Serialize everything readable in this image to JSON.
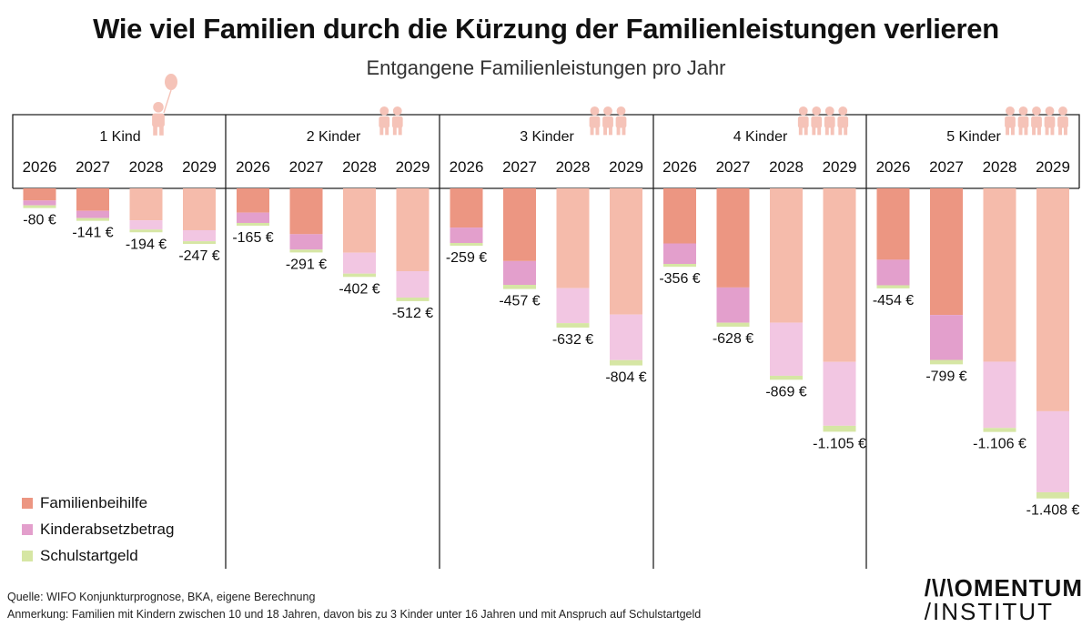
{
  "header": {
    "title": "Wie viel Familien durch die Kürzung der Familienleistungen verlieren",
    "subtitle": "Entgangene Familienleistungen pro Jahr"
  },
  "colors": {
    "familienbeihilfe_full": "#ec9682",
    "kinderabsetzbetrag_full": "#e39fcc",
    "familienbeihilfe_light": "#f5bbab",
    "kinderabsetzbetrag_light": "#f2c6e2",
    "schulstartgeld": "#d6e6a4",
    "icon": "#f5c3b8",
    "frame": "#222222"
  },
  "legend": [
    {
      "label": "Familienbeihilfe",
      "color": "#ec9682"
    },
    {
      "label": "Kinderabsetzbetrag",
      "color": "#e39fcc"
    },
    {
      "label": "Schulstartgeld",
      "color": "#d6e6a4"
    }
  ],
  "chart_data": {
    "type": "bar",
    "orientation": "vertical-downward-stacked",
    "title": "Wie viel Familien durch die Kürzung der Familienleistungen verlieren",
    "subtitle": "Entgangene Familienleistungen pro Jahr",
    "unit": "€",
    "years": [
      "2026",
      "2027",
      "2028",
      "2029"
    ],
    "series_names": [
      "Familienbeihilfe",
      "Kinderabsetzbetrag",
      "Schulstartgeld"
    ],
    "groups": [
      {
        "label": "1 Kind",
        "icon": "child-with-balloon",
        "children": 1,
        "totals": [
          -80,
          -141,
          -194,
          -247
        ],
        "total_labels": [
          "-80 €",
          "-141 €",
          "-194 €",
          "-247 €"
        ],
        "familienbeihilfe": [
          55,
          102,
          145,
          190
        ],
        "kinderabsetzbetrag": [
          22,
          33,
          42,
          50
        ],
        "schulstartgeld": [
          3,
          6,
          7,
          7
        ]
      },
      {
        "label": "2 Kinder",
        "icon": "two-children",
        "children": 2,
        "totals": [
          -165,
          -291,
          -402,
          -512
        ],
        "total_labels": [
          "-165 €",
          "-291 €",
          "-402 €",
          "-512 €"
        ],
        "familienbeihilfe": [
          110,
          208,
          292,
          376
        ],
        "kinderabsetzbetrag": [
          47,
          70,
          95,
          120
        ],
        "schulstartgeld": [
          8,
          13,
          15,
          16
        ]
      },
      {
        "label": "3 Kinder",
        "icon": "three-children",
        "children": 3,
        "totals": [
          -259,
          -457,
          -632,
          -804
        ],
        "total_labels": [
          "-259 €",
          "-457 €",
          "-632 €",
          "-804 €"
        ],
        "familienbeihilfe": [
          178,
          330,
          453,
          573
        ],
        "kinderabsetzbetrag": [
          70,
          108,
          159,
          207
        ],
        "schulstartgeld": [
          11,
          19,
          20,
          24
        ]
      },
      {
        "label": "4 Kinder",
        "icon": "four-children",
        "children": 4,
        "totals": [
          -356,
          -628,
          -869,
          -1105
        ],
        "total_labels": [
          "-356 €",
          "-628 €",
          "-869 €",
          "-1.105 €"
        ],
        "familienbeihilfe": [
          250,
          450,
          610,
          788
        ],
        "kinderabsetzbetrag": [
          93,
          160,
          241,
          290
        ],
        "schulstartgeld": [
          13,
          18,
          18,
          27
        ]
      },
      {
        "label": "5 Kinder",
        "icon": "five-children",
        "children": 5,
        "totals": [
          -454,
          -799,
          -1106,
          -1408
        ],
        "total_labels": [
          "-454 €",
          "-799 €",
          "-1.106 €",
          "-1.408 €"
        ],
        "familienbeihilfe": [
          324,
          575,
          787,
          1012
        ],
        "kinderabsetzbetrag": [
          116,
          204,
          301,
          368
        ],
        "schulstartgeld": [
          14,
          20,
          18,
          28
        ]
      }
    ],
    "highlighted_years": [
      "2026",
      "2027"
    ],
    "ylim": [
      -1450,
      0
    ],
    "legend_position": "bottom-left"
  },
  "footer": {
    "source": "Quelle: WIFO Konjunkturprognose, BKA, eigene Berechnung",
    "note": "Anmerkung: Familien mit Kindern zwischen 10 und 18 Jahren, davon bis zu 3 Kinder unter 16 Jahren und mit Anspruch auf Schulstartgeld"
  },
  "brand": {
    "line1": "/\\/\\OMENTUM",
    "line2": "/INSTITUT"
  }
}
